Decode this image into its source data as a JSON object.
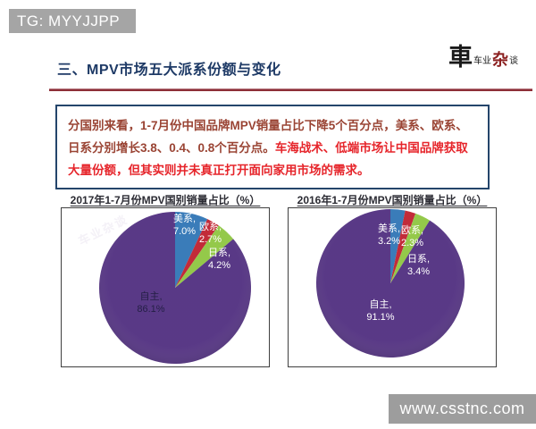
{
  "header": {
    "badge": "TG: MYYJJPP"
  },
  "slide": {
    "title": "三、MPV市场五大派系份额与变化",
    "logo": {
      "mark": "車",
      "name_part1": "车业",
      "name_accent": "杂",
      "name_part2": "谈"
    },
    "pie_watermark": "车业杂谈",
    "paragraph": {
      "lines": [
        {
          "plain": "分国别来看，1-7月份中国品牌MPV销量占比下降5个百分点，美系、欧系、",
          "red": ""
        },
        {
          "plain": "日系分别增长3.8、0.4、0.8个百分点。",
          "red": "车海战术、低端市场让中国品牌获取"
        },
        {
          "plain": "",
          "red": "大量份额，但其实则并未真正打开面向家用市场的需求。"
        }
      ]
    }
  },
  "footer": {
    "watermark": "www.csstnc.com"
  },
  "colors": {
    "title_text": "#1e3a66",
    "divider": "#8d2f38",
    "body_text": "#9a4434",
    "highlight_text": "#e6252b",
    "textbox_border": "#24456b",
    "badge_bg": "#a5a5a5",
    "watermark_bg": "#9d9d9d",
    "own_label_left": "#241f45",
    "own_label_right": "#ffffff"
  },
  "chart_data": [
    {
      "type": "pie",
      "title": "2017年1-7月份MPV国别销量占比（%）",
      "categories": [
        "美系",
        "欧系",
        "日系",
        "自主"
      ],
      "values": [
        7.0,
        2.7,
        4.2,
        86.1
      ],
      "slice_colors": [
        "#2e74b5",
        "#be1e2d",
        "#8dc63f",
        "#4f2d7f"
      ],
      "start_angle_deg": -90,
      "direction": "clockwise",
      "legend": "none",
      "label_display": [
        [
          "美系,",
          "7.0%"
        ],
        [
          "欧系,",
          "2.7%"
        ],
        [
          "日系,",
          "4.2%"
        ],
        [
          "自主,",
          "86.1%"
        ]
      ]
    },
    {
      "type": "pie",
      "title": "2016年1-7月份MPV国别销量占比（%）",
      "categories": [
        "美系",
        "欧系",
        "日系",
        "自主"
      ],
      "values": [
        3.2,
        2.3,
        3.4,
        91.1
      ],
      "slice_colors": [
        "#2e74b5",
        "#be1e2d",
        "#8dc63f",
        "#4f2d7f"
      ],
      "start_angle_deg": -90,
      "direction": "clockwise",
      "legend": "none",
      "label_display": [
        [
          "美系,",
          "3.2%"
        ],
        [
          "欧系,",
          "2.3%"
        ],
        [
          "日系,",
          "3.4%"
        ],
        [
          "自主,",
          "91.1%"
        ]
      ]
    }
  ]
}
